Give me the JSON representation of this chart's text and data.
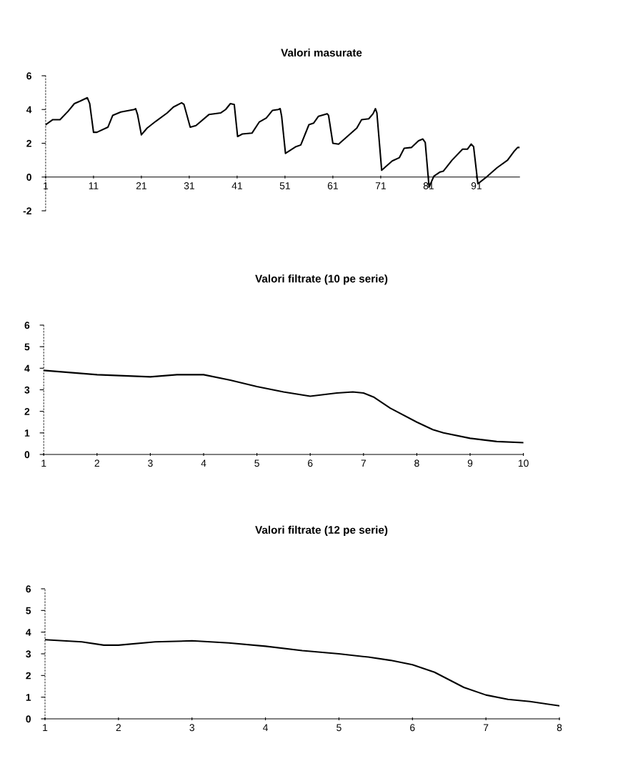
{
  "chart_data": [
    {
      "type": "line",
      "title": "Valori masurate",
      "xlim": [
        1,
        100
      ],
      "xticks": [
        1,
        11,
        21,
        31,
        41,
        51,
        61,
        71,
        81,
        91
      ],
      "ylim": [
        -2,
        6
      ],
      "yticks": [
        -2,
        0,
        2,
        4,
        6
      ],
      "grid": false,
      "legend": false,
      "marker": "none",
      "line_style": "solid",
      "series": [
        {
          "color": "#000000",
          "x": [
            1,
            2.5,
            4,
            5.7,
            7,
            8.2,
            9.7,
            10.2,
            11,
            11.7,
            14,
            15,
            16.7,
            19.5,
            19.8,
            20.2,
            21,
            22.2,
            24,
            26.4,
            27.7,
            29.4,
            29.9,
            31.2,
            32.4,
            35.1,
            37.6,
            38.6,
            39.6,
            40.4,
            41.1,
            42.1,
            44.1,
            45.6,
            47.1,
            48.4,
            49.6,
            50,
            50.3,
            51.1,
            53.3,
            54.3,
            56,
            57,
            58,
            59.8,
            60.1,
            61,
            62.2,
            66,
            67,
            68.5,
            69.4,
            69.9,
            70.2,
            71.2,
            72,
            73.4,
            74.9,
            75.9,
            77.4,
            78.9,
            79.8,
            80.3,
            81.1,
            82.1,
            83.4,
            84.1,
            85.9,
            88.1,
            89.1,
            89.9,
            90.4,
            91.3,
            93.3,
            95.3,
            97.5,
            98.8,
            99.6,
            100
          ],
          "values": [
            3.1,
            3.4,
            3.4,
            3.9,
            4.35,
            4.5,
            4.7,
            4.35,
            2.65,
            2.65,
            2.95,
            3.65,
            3.85,
            4.0,
            4.05,
            3.7,
            2.5,
            2.9,
            3.3,
            3.8,
            4.15,
            4.4,
            4.3,
            2.95,
            3.05,
            3.7,
            3.8,
            4.0,
            4.35,
            4.3,
            2.4,
            2.55,
            2.6,
            3.25,
            3.5,
            3.95,
            4.0,
            4.05,
            3.6,
            1.4,
            1.8,
            1.9,
            3.1,
            3.2,
            3.6,
            3.75,
            3.65,
            2.0,
            1.95,
            2.9,
            3.4,
            3.45,
            3.75,
            4.05,
            3.8,
            0.4,
            0.6,
            0.95,
            1.15,
            1.7,
            1.75,
            2.15,
            2.25,
            2.05,
            -0.6,
            0.05,
            0.3,
            0.35,
            1.0,
            1.65,
            1.65,
            1.95,
            1.8,
            -0.4,
            0.05,
            0.55,
            1.0,
            1.5,
            1.75,
            1.75
          ]
        }
      ]
    },
    {
      "type": "line",
      "title": "Valori filtrate (10 pe serie)",
      "xlim": [
        1,
        10
      ],
      "xticks": [
        1,
        2,
        3,
        4,
        5,
        6,
        7,
        8,
        9,
        10
      ],
      "ylim": [
        0,
        6
      ],
      "yticks": [
        0,
        1,
        2,
        3,
        4,
        5,
        6
      ],
      "grid": false,
      "legend": false,
      "marker": "none",
      "line_style": "solid",
      "series": [
        {
          "color": "#000000",
          "x": [
            1,
            2,
            3,
            3.5,
            4,
            4.5,
            5,
            5.5,
            6,
            6.5,
            6.8,
            7,
            7.2,
            7.5,
            8,
            8.3,
            8.5,
            9,
            9.5,
            10
          ],
          "values": [
            3.9,
            3.7,
            3.6,
            3.7,
            3.7,
            3.45,
            3.15,
            2.9,
            2.7,
            2.85,
            2.9,
            2.85,
            2.65,
            2.15,
            1.5,
            1.15,
            1.0,
            0.75,
            0.6,
            0.55
          ]
        }
      ]
    },
    {
      "type": "line",
      "title": "Valori filtrate (12 pe serie)",
      "xlim": [
        1,
        8
      ],
      "xticks": [
        1,
        2,
        3,
        4,
        5,
        6,
        7,
        8
      ],
      "ylim": [
        0,
        6
      ],
      "yticks": [
        0,
        1,
        2,
        3,
        4,
        5,
        6
      ],
      "grid": false,
      "legend": false,
      "marker": "none",
      "line_style": "solid",
      "series": [
        {
          "color": "#000000",
          "x": [
            1,
            1.5,
            1.8,
            2,
            2.5,
            3,
            3.5,
            4,
            4.5,
            5,
            5.4,
            5.7,
            6,
            6.3,
            6.7,
            7,
            7.3,
            7.6,
            8
          ],
          "values": [
            3.65,
            3.55,
            3.4,
            3.4,
            3.55,
            3.6,
            3.5,
            3.35,
            3.15,
            3.0,
            2.85,
            2.7,
            2.5,
            2.15,
            1.45,
            1.1,
            0.9,
            0.8,
            0.6
          ]
        }
      ]
    }
  ]
}
